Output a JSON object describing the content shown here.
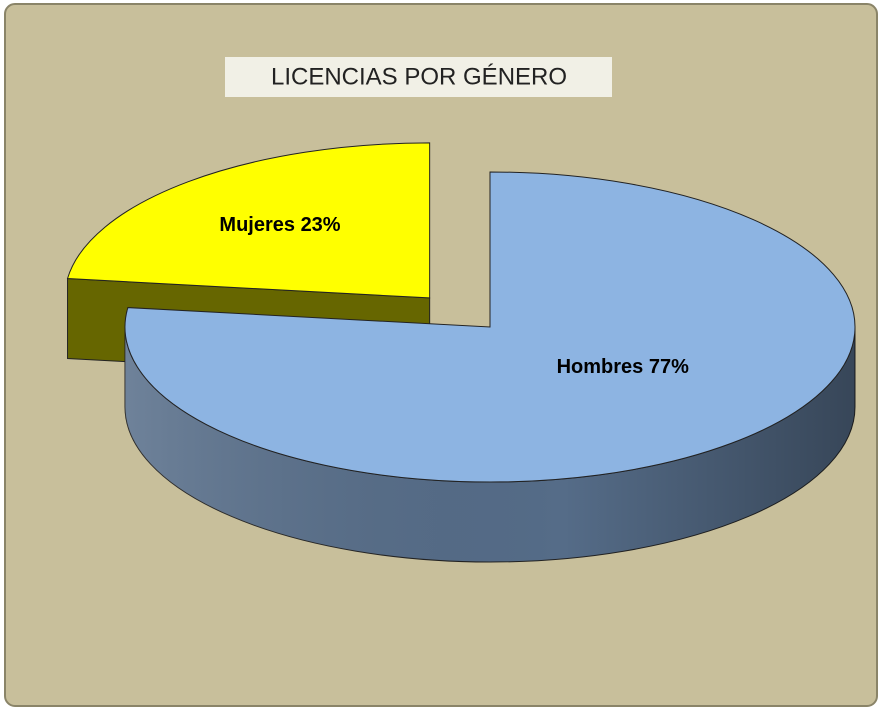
{
  "chart_data": {
    "type": "pie3d",
    "title": "LICENCIAS POR GÉNERO",
    "categories": [
      "Hombres",
      "Mujeres"
    ],
    "values": [
      77,
      23
    ],
    "value_labels": [
      "77%",
      "23%"
    ],
    "colors": [
      "#8db4e2",
      "#ffff00"
    ]
  }
}
